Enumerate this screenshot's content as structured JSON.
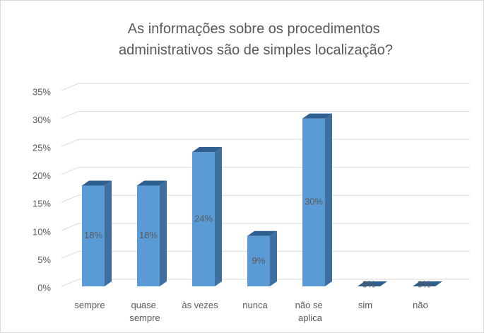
{
  "chart_data": {
    "type": "bar3d",
    "title": "As informações sobre os procedimentos administrativos são de simples localização?",
    "categories": [
      "sempre",
      "quase sempre",
      "às vezes",
      "nunca",
      "não se aplica",
      "sim",
      "não"
    ],
    "values": [
      18,
      18,
      24,
      9,
      30,
      0,
      0
    ],
    "value_labels": [
      "18%",
      "18%",
      "24%",
      "9%",
      "30%",
      "0%",
      "0%"
    ],
    "color": "#5b9bd5",
    "ylim": [
      0,
      35
    ],
    "yticks": [
      {
        "value": 0,
        "label": "0%"
      },
      {
        "value": 5,
        "label": "5%"
      },
      {
        "value": 10,
        "label": "10%"
      },
      {
        "value": 15,
        "label": "15%"
      },
      {
        "value": 20,
        "label": "20%"
      },
      {
        "value": 25,
        "label": "25%"
      },
      {
        "value": 30,
        "label": "30%"
      },
      {
        "value": 35,
        "label": "35%"
      }
    ],
    "grid": true
  }
}
